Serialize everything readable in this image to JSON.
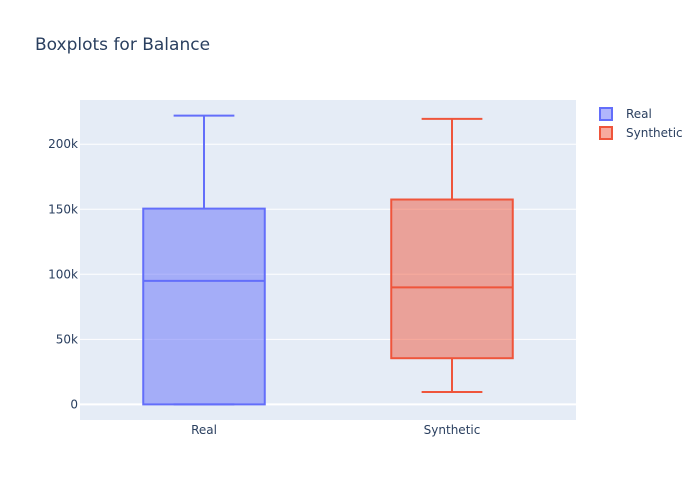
{
  "chart_data": {
    "type": "box",
    "title": "Boxplots for Balance",
    "xlabel": "",
    "ylabel": "",
    "categories": [
      "Real",
      "Synthetic"
    ],
    "ylim": [
      -12000,
      234000
    ],
    "y_ticks": [
      0,
      50000,
      100000,
      150000,
      200000
    ],
    "y_tick_labels": [
      "0",
      "50k",
      "100k",
      "150k",
      "200k"
    ],
    "grid": true,
    "legend_position": "top-right",
    "series": [
      {
        "name": "Real",
        "color": "#636efa",
        "fill": "rgba(99,110,250,0.5)",
        "min": 0,
        "q1": 0,
        "median": 95000,
        "q3": 150500,
        "max": 222000
      },
      {
        "name": "Synthetic",
        "color": "#ef553b",
        "fill": "rgba(239,85,59,0.5)",
        "min": 9500,
        "q1": 35500,
        "median": 90000,
        "q3": 157500,
        "max": 219500
      }
    ]
  }
}
